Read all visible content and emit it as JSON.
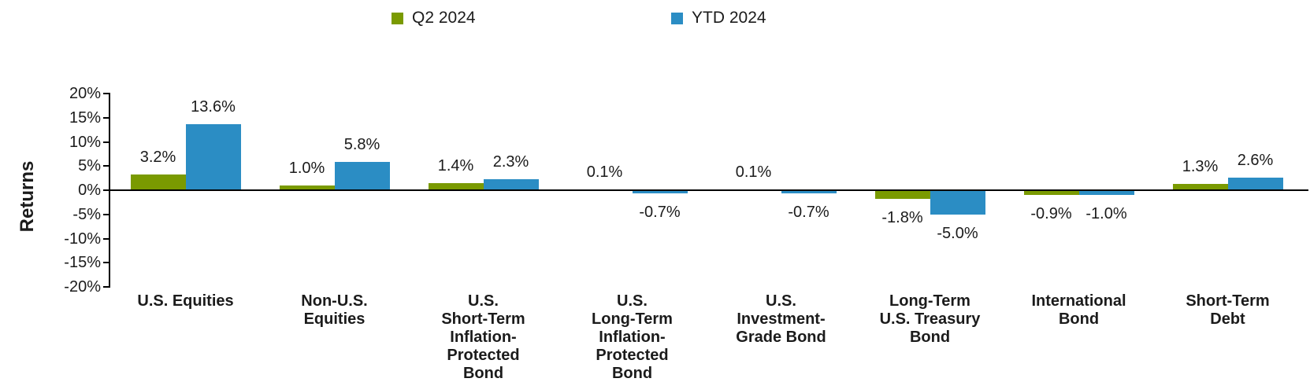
{
  "axis": {
    "ylabel": "Returns",
    "yticks": [
      "20%",
      "15%",
      "10%",
      "5%",
      "0%",
      "-5%",
      "-10%",
      "-15%",
      "-20%"
    ],
    "ytick_values": [
      20,
      15,
      10,
      5,
      0,
      -5,
      -10,
      -15,
      -20
    ]
  },
  "chart_data": {
    "type": "bar",
    "title": "",
    "xlabel": "",
    "ylabel": "Returns",
    "ylim": [
      -20,
      20
    ],
    "ytick_step": 5,
    "ytick_suffix": "%",
    "grid": false,
    "legend_position": "top",
    "category_names": [
      "U.S. Equities",
      "Non-U.S. Equities",
      "U.S. Short-Term Inflation-Protected Bond",
      "U.S. Long-Term Inflation-Protected Bond",
      "U.S. Investment-Grade Bond",
      "Long-Term U.S. Treasury Bond",
      "International Bond",
      "Short-Term Debt"
    ],
    "categories": [
      [
        "U.S. Equities"
      ],
      [
        "Non-U.S.",
        "Equities"
      ],
      [
        "U.S.",
        "Short-Term",
        "Inflation-",
        "Protected",
        "Bond"
      ],
      [
        "U.S.",
        "Long-Term",
        "Inflation-",
        "Protected",
        "Bond"
      ],
      [
        "U.S.",
        "Investment-",
        "Grade Bond"
      ],
      [
        "Long-Term",
        "U.S. Treasury",
        "Bond"
      ],
      [
        "International",
        "Bond"
      ],
      [
        "Short-Term",
        "Debt"
      ]
    ],
    "series": [
      {
        "name": "Q2 2024",
        "color": "#7A9A01",
        "values": [
          3.2,
          1.0,
          1.4,
          0.1,
          0.1,
          -1.8,
          -0.9,
          1.3
        ],
        "labels": [
          "3.2%",
          "1.0%",
          "1.4%",
          "0.1%",
          "0.1%",
          "-1.8%",
          "-0.9%",
          "1.3%"
        ]
      },
      {
        "name": "YTD 2024",
        "color": "#2B8DC4",
        "values": [
          13.6,
          5.8,
          2.3,
          -0.7,
          -0.7,
          -5.0,
          -1.0,
          2.6
        ],
        "labels": [
          "13.6%",
          "5.8%",
          "2.3%",
          "-0.7%",
          "-0.7%",
          "-5.0%",
          "-1.0%",
          "2.6%"
        ]
      }
    ]
  }
}
